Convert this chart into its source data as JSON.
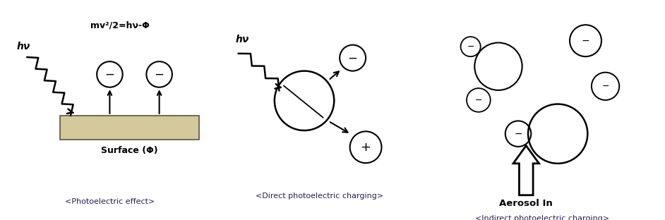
{
  "bg_color": "#ffffff",
  "surface_color": "#d4c99a",
  "surface_edge_color": "#555544",
  "line_color": "#000000",
  "panel1": {
    "label": "<Photoelectric effect>",
    "formula": "mv²/2=hν-Φ",
    "surface_label": "Surface (Φ)"
  },
  "panel2": {
    "label": "<Direct photoelectric charging>",
    "hv_label": "hν"
  },
  "panel3": {
    "label": "<Indirect photoelectric charging>",
    "aerosol_label": "Aerosol In"
  }
}
